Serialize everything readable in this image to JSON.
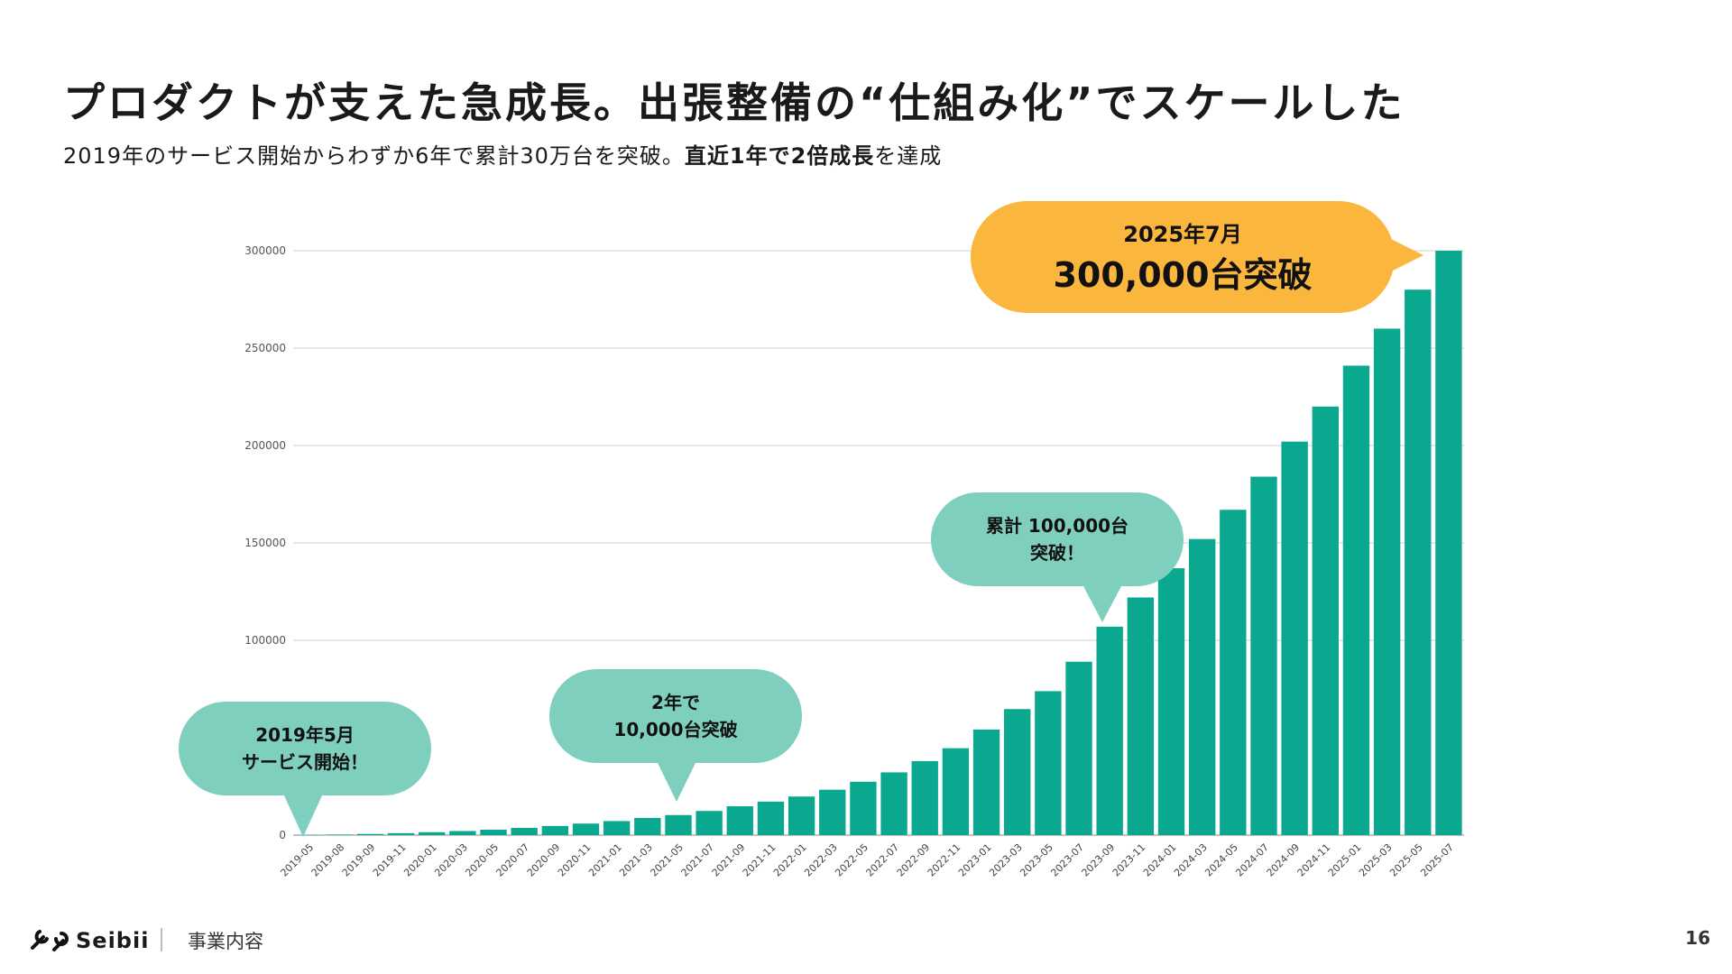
{
  "slide": {
    "title": "プロダクトが支えた急成長。出張整備の“仕組み化”でスケールした",
    "subtitle_before": "2019年のサービス開始からわずか6年で累計30万台を突破。",
    "subtitle_bold": "直近1年で2倍成長",
    "subtitle_after": "を達成"
  },
  "chart_data": {
    "type": "bar",
    "categories": [
      "2019-05",
      "2019-08",
      "2019-09",
      "2019-11",
      "2020-01",
      "2020-03",
      "2020-05",
      "2020-07",
      "2020-09",
      "2020-11",
      "2021-01",
      "2021-03",
      "2021-05",
      "2021-07",
      "2021-09",
      "2021-11",
      "2022-01",
      "2022-03",
      "2022-05",
      "2022-07",
      "2022-09",
      "2022-11",
      "2023-01",
      "2023-03",
      "2023-05",
      "2023-07",
      "2023-09",
      "2023-11",
      "2024-01",
      "2024-03",
      "2024-05",
      "2024-07",
      "2024-09",
      "2024-11",
      "2025-01",
      "2025-03",
      "2025-05",
      "2025-07"
    ],
    "values": [
      100,
      300,
      600,
      1000,
      1500,
      2100,
      2800,
      3700,
      4700,
      5900,
      7200,
      8800,
      10300,
      12400,
      14800,
      17200,
      19800,
      23300,
      27400,
      32200,
      38000,
      44600,
      54200,
      64700,
      73900,
      89000,
      107000,
      122000,
      137000,
      152000,
      167000,
      184000,
      202000,
      220000,
      241000,
      260000,
      280000,
      300000
    ],
    "y_ticks": [
      "0",
      "100000",
      "150000",
      "200000",
      "250000",
      "300000"
    ],
    "ylim": [
      0,
      300000
    ],
    "grid": true,
    "bar_color": "#0aa88e",
    "annotations": [
      {
        "lines": [
          "2019年5月",
          "サービス開始！"
        ],
        "category": "2019-05",
        "color": "#7fcfbf",
        "size": "small"
      },
      {
        "lines": [
          "2年で",
          "10,000台突破"
        ],
        "category": "2021-05",
        "color": "#7fcfbf",
        "size": "small"
      },
      {
        "lines": [
          "累計 100,000台",
          "突破！"
        ],
        "category": "2023-09",
        "color": "#7fcfbf",
        "size": "small"
      },
      {
        "lines": [
          "2025年7月",
          "300,000台突破"
        ],
        "category": "2025-07",
        "color": "#fbb63d",
        "size": "large"
      }
    ]
  },
  "footer": {
    "logo_text": "Seibii",
    "section": "事業内容",
    "page_number": "16"
  }
}
